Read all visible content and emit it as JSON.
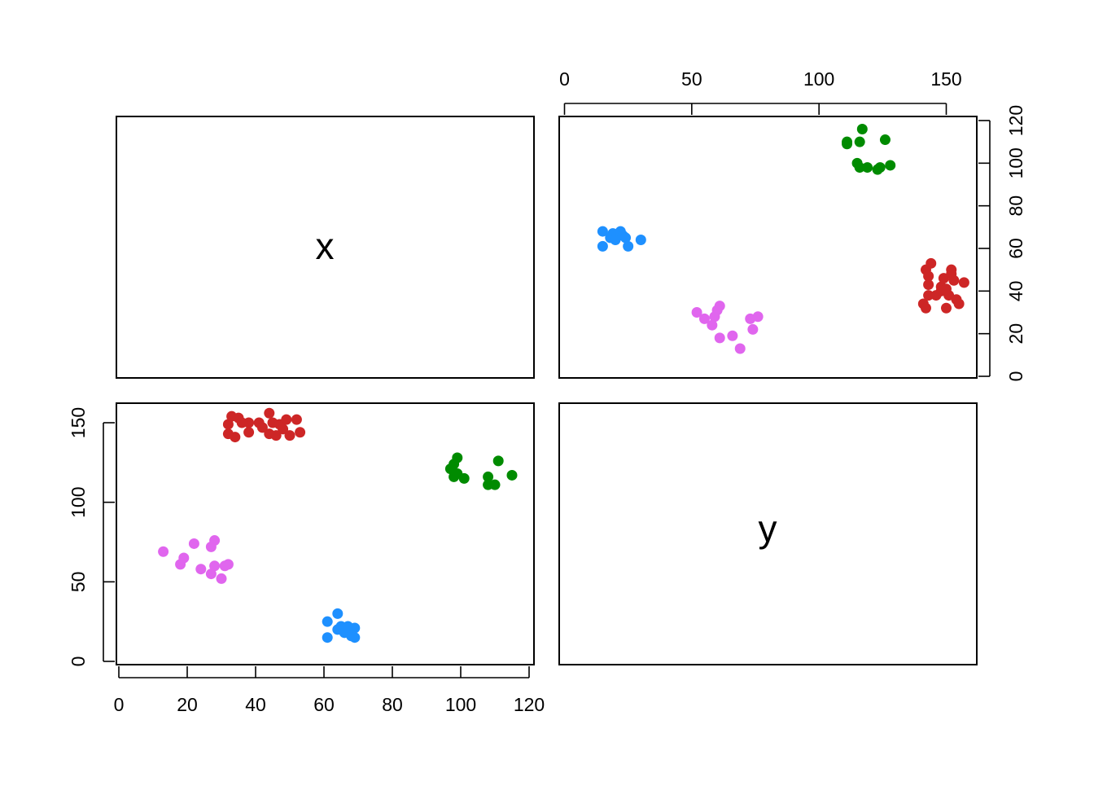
{
  "variables": [
    "x",
    "y"
  ],
  "chart_data": [
    {
      "type": "scatter",
      "panel": "x-vs-y",
      "x_variable": "y",
      "y_variable": "x",
      "xlim": [
        0,
        160
      ],
      "ylim": [
        0,
        120
      ],
      "x_ticks": [
        0,
        50,
        100,
        150
      ],
      "y_ticks": [
        0,
        20,
        40,
        60,
        80,
        100,
        120
      ],
      "axes": "top and right",
      "grid": false,
      "series": [
        {
          "color": "#1E90FF",
          "points": [
            [
              15,
              61
            ],
            [
              15,
              68
            ],
            [
              18,
              65
            ],
            [
              19,
              67
            ],
            [
              20,
              64
            ],
            [
              22,
              68
            ],
            [
              23,
              66
            ],
            [
              24,
              65
            ],
            [
              25,
              61
            ],
            [
              30,
              64
            ]
          ]
        },
        {
          "color": "#E066EE",
          "points": [
            [
              52,
              30
            ],
            [
              55,
              27
            ],
            [
              58,
              24
            ],
            [
              59,
              28
            ],
            [
              60,
              31
            ],
            [
              61,
              33
            ],
            [
              61,
              18
            ],
            [
              66,
              19
            ],
            [
              69,
              13
            ],
            [
              73,
              27
            ],
            [
              74,
              22
            ],
            [
              76,
              28
            ]
          ]
        },
        {
          "color": "#008B00",
          "points": [
            [
              111,
              109
            ],
            [
              111,
              110
            ],
            [
              115,
              100
            ],
            [
              116,
              98
            ],
            [
              116,
              110
            ],
            [
              117,
              116
            ],
            [
              119,
              98
            ],
            [
              123,
              97
            ],
            [
              124,
              98
            ],
            [
              126,
              111
            ],
            [
              128,
              99
            ]
          ]
        },
        {
          "color": "#CD2626",
          "points": [
            [
              141,
              34
            ],
            [
              142,
              32
            ],
            [
              142,
              50
            ],
            [
              143,
              47
            ],
            [
              143,
              43
            ],
            [
              143,
              38
            ],
            [
              144,
              53
            ],
            [
              146,
              38
            ],
            [
              148,
              42
            ],
            [
              149,
              46
            ],
            [
              150,
              41
            ],
            [
              150,
              32
            ],
            [
              151,
              38
            ],
            [
              152,
              50
            ],
            [
              153,
              45
            ],
            [
              154,
              36
            ],
            [
              155,
              34
            ],
            [
              157,
              44
            ],
            [
              148,
              40
            ],
            [
              152,
              48
            ]
          ]
        }
      ]
    },
    {
      "type": "scatter",
      "panel": "y-vs-x",
      "x_variable": "x",
      "y_variable": "y",
      "xlim": [
        0,
        120
      ],
      "ylim": [
        0,
        160
      ],
      "x_ticks": [
        0,
        20,
        40,
        60,
        80,
        100,
        120
      ],
      "y_ticks": [
        0,
        50,
        100,
        150
      ],
      "axes": "bottom and left",
      "grid": false,
      "series": [
        {
          "color": "#1E90FF",
          "points": [
            [
              61,
              15
            ],
            [
              61,
              25
            ],
            [
              64,
              30
            ],
            [
              64,
              20
            ],
            [
              65,
              22
            ],
            [
              66,
              18
            ],
            [
              67,
              22
            ],
            [
              68,
              16
            ],
            [
              69,
              15
            ],
            [
              69,
              21
            ]
          ]
        },
        {
          "color": "#E066EE",
          "points": [
            [
              13,
              69
            ],
            [
              18,
              61
            ],
            [
              19,
              65
            ],
            [
              22,
              74
            ],
            [
              24,
              58
            ],
            [
              27,
              55
            ],
            [
              27,
              72
            ],
            [
              28,
              76
            ],
            [
              28,
              60
            ],
            [
              30,
              52
            ],
            [
              31,
              60
            ],
            [
              32,
              61
            ]
          ]
        },
        {
          "color": "#008B00",
          "points": [
            [
              97,
              121
            ],
            [
              98,
              124
            ],
            [
              98,
              116
            ],
            [
              99,
              128
            ],
            [
              99,
              118
            ],
            [
              101,
              115
            ],
            [
              108,
              116
            ],
            [
              108,
              111
            ],
            [
              110,
              111
            ],
            [
              111,
              126
            ],
            [
              115,
              117
            ]
          ]
        },
        {
          "color": "#CD2626",
          "points": [
            [
              32,
              143
            ],
            [
              32,
              149
            ],
            [
              33,
              154
            ],
            [
              34,
              141
            ],
            [
              35,
              153
            ],
            [
              38,
              150
            ],
            [
              38,
              144
            ],
            [
              41,
              150
            ],
            [
              44,
              156
            ],
            [
              44,
              143
            ],
            [
              45,
              150
            ],
            [
              46,
              142
            ],
            [
              47,
              149
            ],
            [
              49,
              152
            ],
            [
              50,
              142
            ],
            [
              52,
              152
            ],
            [
              53,
              144
            ],
            [
              36,
              150
            ],
            [
              42,
              147
            ],
            [
              48,
              146
            ]
          ]
        }
      ]
    }
  ]
}
